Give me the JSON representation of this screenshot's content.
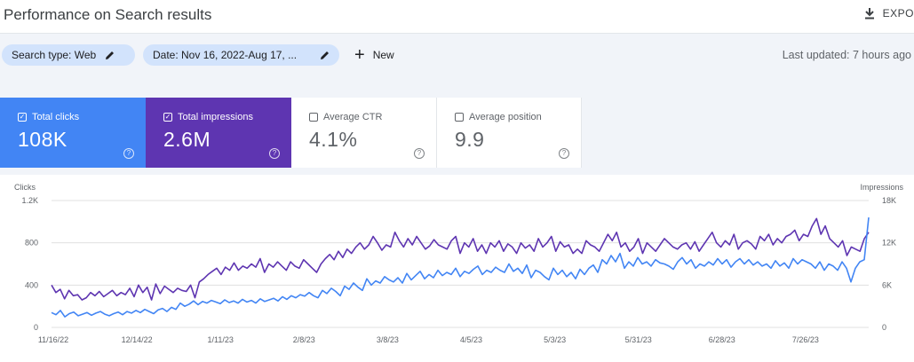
{
  "header": {
    "title": "Performance on Search results",
    "export_label": "EXPO"
  },
  "filters": {
    "search_type": "Search type: Web",
    "date": "Date: Nov 16, 2022-Aug 17, ...",
    "new_label": "New",
    "last_updated": "Last updated: 7 hours ago"
  },
  "metrics": [
    {
      "label": "Total clicks",
      "value": "108K",
      "checked": true
    },
    {
      "label": "Total impressions",
      "value": "2.6M",
      "checked": true
    },
    {
      "label": "Average CTR",
      "value": "4.1%",
      "checked": false
    },
    {
      "label": "Average position",
      "value": "9.9",
      "checked": false
    }
  ],
  "colors": {
    "clicks": "#4285f4",
    "impressions": "#5e35b1",
    "grid": "#e0e0e0"
  },
  "chart_data": {
    "type": "line",
    "left_axis_label": "Clicks",
    "right_axis_label": "Impressions",
    "left_ticks": [
      "1.2K",
      "800",
      "400",
      "0"
    ],
    "left_tick_values": [
      1200,
      800,
      400,
      0
    ],
    "right_ticks": [
      "18K",
      "12K",
      "6K",
      "0"
    ],
    "right_tick_values": [
      18000,
      12000,
      6000,
      0
    ],
    "ylim_left": [
      0,
      1200
    ],
    "ylim_right": [
      0,
      18000
    ],
    "x_ticks": [
      "11/16/22",
      "12/14/22",
      "1/11/23",
      "2/8/23",
      "3/8/23",
      "4/5/23",
      "5/3/23",
      "5/31/23",
      "6/28/23",
      "7/26/23"
    ],
    "grid": true,
    "series": [
      {
        "name": "Clicks",
        "axis": "left",
        "values": [
          140,
          120,
          160,
          100,
          130,
          145,
          110,
          125,
          140,
          115,
          135,
          150,
          125,
          110,
          130,
          145,
          120,
          150,
          135,
          160,
          140,
          170,
          150,
          130,
          165,
          180,
          150,
          190,
          170,
          230,
          200,
          220,
          250,
          215,
          245,
          230,
          255,
          240,
          225,
          260,
          235,
          250,
          230,
          265,
          240,
          255,
          230,
          270,
          245,
          260,
          275,
          250,
          290,
          265,
          300,
          280,
          310,
          295,
          330,
          300,
          280,
          350,
          320,
          370,
          340,
          300,
          390,
          360,
          420,
          380,
          350,
          460,
          400,
          440,
          420,
          480,
          450,
          430,
          470,
          420,
          510,
          450,
          490,
          530,
          460,
          500,
          470,
          540,
          490,
          520,
          500,
          560,
          480,
          530,
          510,
          550,
          580,
          500,
          540,
          520,
          570,
          540,
          520,
          600,
          530,
          560,
          510,
          590,
          470,
          540,
          520,
          480,
          450,
          560,
          500,
          540,
          480,
          520,
          460,
          550,
          500,
          560,
          590,
          520,
          640,
          600,
          680,
          620,
          700,
          560,
          620,
          580,
          660,
          600,
          620,
          580,
          640,
          610,
          600,
          580,
          550,
          620,
          660,
          600,
          640,
          560,
          600,
          580,
          620,
          590,
          650,
          600,
          640,
          570,
          620,
          650,
          600,
          640,
          590,
          620,
          580,
          600,
          560,
          630,
          580,
          610,
          560,
          650,
          600,
          640,
          620,
          600,
          560,
          620,
          540,
          600,
          580,
          540,
          620,
          560,
          430,
          560,
          620,
          640,
          1040
        ]
      },
      {
        "name": "Impressions",
        "axis": "left",
        "values": [
          400,
          330,
          360,
          270,
          350,
          300,
          310,
          260,
          280,
          330,
          300,
          340,
          290,
          320,
          350,
          300,
          330,
          310,
          370,
          290,
          400,
          330,
          380,
          260,
          410,
          320,
          390,
          360,
          330,
          370,
          350,
          340,
          400,
          280,
          430,
          460,
          500,
          530,
          560,
          500,
          570,
          540,
          610,
          540,
          580,
          560,
          600,
          570,
          650,
          520,
          600,
          570,
          620,
          580,
          540,
          620,
          580,
          560,
          640,
          600,
          560,
          520,
          600,
          650,
          690,
          640,
          720,
          660,
          740,
          700,
          760,
          800,
          740,
          780,
          860,
          800,
          730,
          780,
          760,
          900,
          820,
          760,
          840,
          780,
          860,
          800,
          740,
          770,
          830,
          780,
          760,
          740,
          820,
          860,
          700,
          800,
          760,
          840,
          720,
          780,
          700,
          800,
          760,
          820,
          720,
          790,
          760,
          700,
          800,
          750,
          780,
          720,
          840,
          760,
          800,
          860,
          720,
          810,
          760,
          780,
          700,
          740,
          700,
          820,
          780,
          760,
          720,
          800,
          880,
          820,
          900,
          760,
          800,
          720,
          760,
          840,
          700,
          800,
          760,
          720,
          780,
          840,
          800,
          760,
          740,
          780,
          800,
          740,
          810,
          720,
          780,
          840,
          900,
          800,
          760,
          820,
          780,
          880,
          740,
          800,
          820,
          790,
          740,
          860,
          820,
          880,
          780,
          840,
          800,
          860,
          880,
          920,
          820,
          880,
          860,
          960,
          1030,
          880,
          960,
          840,
          800,
          760,
          820,
          680,
          760,
          740,
          720,
          840,
          900
        ]
      }
    ]
  }
}
